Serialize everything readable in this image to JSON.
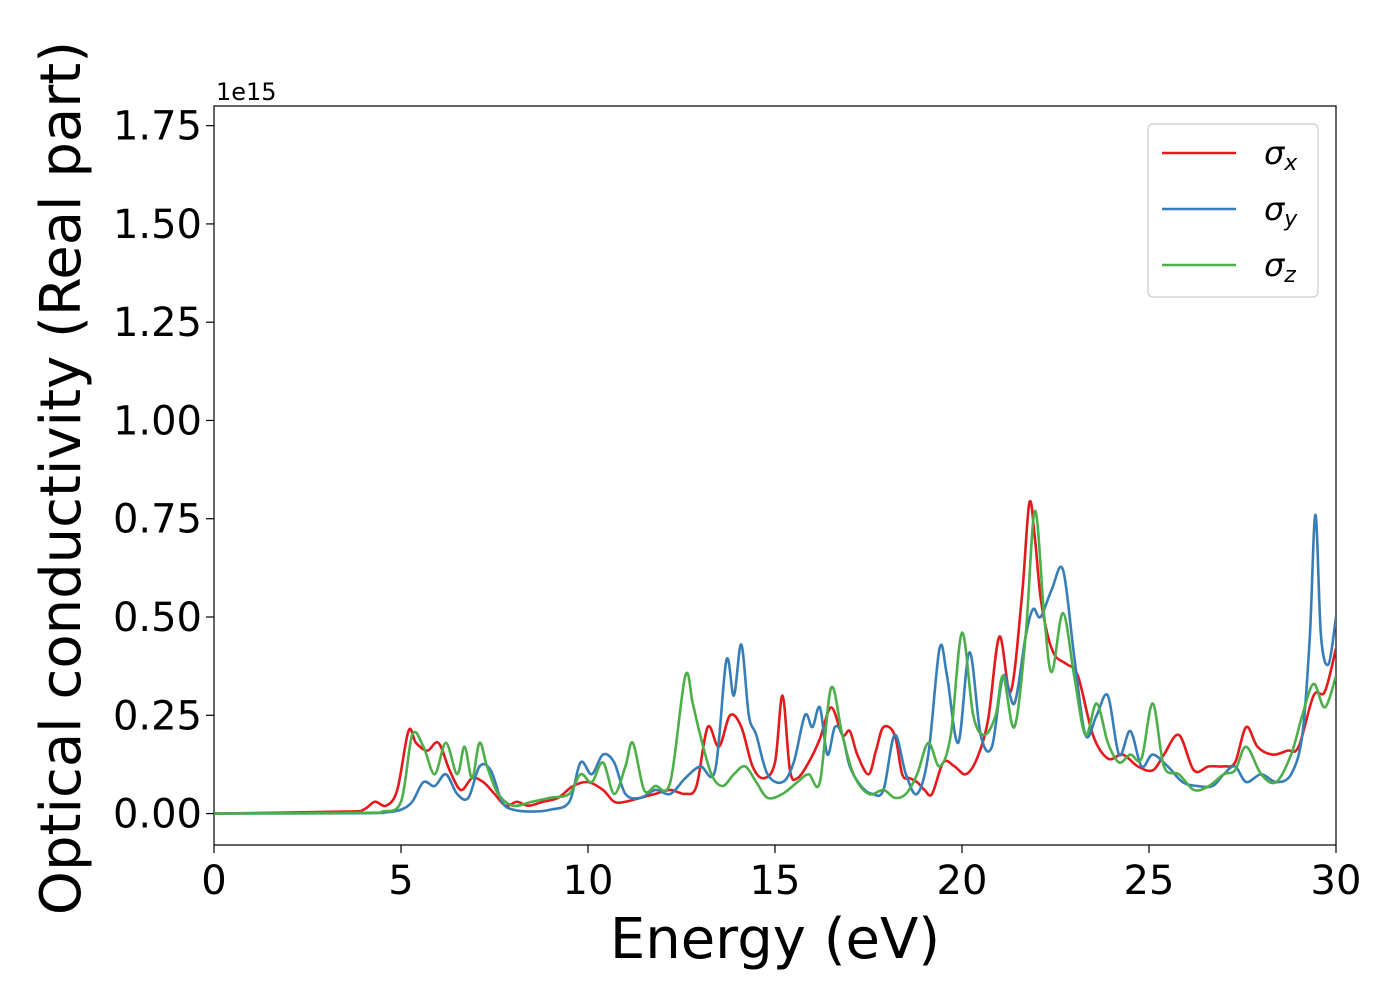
{
  "chart_data": {
    "type": "line",
    "xlabel": "Energy (eV)",
    "ylabel": "Optical conductivity (Real part)",
    "offset_label": "1e15",
    "y_scale_factor": 1000000000000000.0,
    "xlim": [
      0,
      30
    ],
    "ylim": [
      -0.08,
      1.8
    ],
    "xticks": [
      0,
      5,
      10,
      15,
      20,
      25,
      30
    ],
    "xtick_labels": [
      "0",
      "5",
      "10",
      "15",
      "20",
      "25",
      "30"
    ],
    "yticks": [
      0.0,
      0.25,
      0.5,
      0.75,
      1.0,
      1.25,
      1.5,
      1.75
    ],
    "ytick_labels": [
      "0.00",
      "0.25",
      "0.50",
      "0.75",
      "1.00",
      "1.25",
      "1.50",
      "1.75"
    ],
    "grid": false,
    "legend_position": "top-right",
    "series": [
      {
        "name": "σx",
        "base": "σ",
        "sub": "x",
        "color": "#e41a1c",
        "x": [
          0,
          3.5,
          4.0,
          4.3,
          4.6,
          4.9,
          5.2,
          5.4,
          5.7,
          6.0,
          6.3,
          6.6,
          6.9,
          7.2,
          7.5,
          7.8,
          8.1,
          8.4,
          8.8,
          9.2,
          9.6,
          10.0,
          10.4,
          10.7,
          11.0,
          11.4,
          11.8,
          12.2,
          12.6,
          12.9,
          13.2,
          13.5,
          13.8,
          14.1,
          14.4,
          14.7,
          15.0,
          15.2,
          15.4,
          15.6,
          15.9,
          16.2,
          16.5,
          16.8,
          17.0,
          17.2,
          17.5,
          17.7,
          17.9,
          18.2,
          18.4,
          18.6,
          18.8,
          19.0,
          19.2,
          19.5,
          19.8,
          20.1,
          20.4,
          20.7,
          21.0,
          21.3,
          21.6,
          21.8,
          21.95,
          22.1,
          22.3,
          22.5,
          22.8,
          23.1,
          23.5,
          23.9,
          24.3,
          24.7,
          25.1,
          25.4,
          25.8,
          26.2,
          26.6,
          27.0,
          27.3,
          27.6,
          27.9,
          28.3,
          28.7,
          29.0,
          29.4,
          29.7,
          30.0
        ],
        "y": [
          0,
          0.005,
          0.01,
          0.03,
          0.02,
          0.06,
          0.21,
          0.18,
          0.16,
          0.18,
          0.11,
          0.06,
          0.09,
          0.08,
          0.05,
          0.02,
          0.03,
          0.02,
          0.03,
          0.04,
          0.07,
          0.08,
          0.06,
          0.03,
          0.03,
          0.04,
          0.05,
          0.06,
          0.05,
          0.07,
          0.22,
          0.17,
          0.25,
          0.22,
          0.12,
          0.09,
          0.13,
          0.3,
          0.11,
          0.09,
          0.13,
          0.19,
          0.27,
          0.2,
          0.21,
          0.15,
          0.1,
          0.16,
          0.22,
          0.2,
          0.1,
          0.09,
          0.08,
          0.06,
          0.05,
          0.13,
          0.12,
          0.1,
          0.14,
          0.24,
          0.45,
          0.31,
          0.55,
          0.79,
          0.7,
          0.55,
          0.45,
          0.4,
          0.38,
          0.35,
          0.2,
          0.14,
          0.15,
          0.12,
          0.11,
          0.15,
          0.2,
          0.11,
          0.12,
          0.12,
          0.13,
          0.22,
          0.17,
          0.15,
          0.16,
          0.17,
          0.3,
          0.31,
          0.42
        ]
      },
      {
        "name": "σy",
        "base": "σ",
        "sub": "y",
        "color": "#377eb8",
        "x": [
          0,
          4.0,
          4.6,
          5.0,
          5.3,
          5.6,
          5.9,
          6.2,
          6.5,
          6.8,
          7.1,
          7.4,
          7.7,
          8.0,
          8.5,
          9.0,
          9.5,
          9.8,
          10.1,
          10.4,
          10.7,
          11.0,
          11.4,
          11.8,
          12.2,
          12.6,
          13.0,
          13.4,
          13.7,
          13.9,
          14.1,
          14.3,
          14.5,
          14.8,
          15.2,
          15.5,
          15.8,
          16.0,
          16.2,
          16.4,
          16.6,
          16.8,
          17.0,
          17.3,
          17.6,
          17.9,
          18.2,
          18.5,
          18.8,
          19.1,
          19.4,
          19.6,
          19.9,
          20.2,
          20.5,
          20.8,
          21.1,
          21.4,
          21.7,
          21.9,
          22.1,
          22.4,
          22.7,
          23.0,
          23.3,
          23.6,
          23.9,
          24.2,
          24.5,
          24.8,
          25.1,
          25.5,
          25.9,
          26.3,
          26.7,
          27.0,
          27.3,
          27.6,
          28.0,
          28.4,
          28.8,
          29.1,
          29.3,
          29.45,
          29.6,
          29.8,
          30.0
        ],
        "y": [
          0,
          0.001,
          0.003,
          0.01,
          0.03,
          0.08,
          0.07,
          0.1,
          0.05,
          0.04,
          0.12,
          0.11,
          0.03,
          0.01,
          0.005,
          0.01,
          0.03,
          0.13,
          0.1,
          0.15,
          0.13,
          0.05,
          0.04,
          0.06,
          0.05,
          0.09,
          0.12,
          0.11,
          0.39,
          0.3,
          0.43,
          0.25,
          0.2,
          0.1,
          0.08,
          0.13,
          0.25,
          0.22,
          0.27,
          0.15,
          0.22,
          0.2,
          0.12,
          0.07,
          0.05,
          0.06,
          0.2,
          0.1,
          0.05,
          0.15,
          0.42,
          0.35,
          0.18,
          0.41,
          0.2,
          0.17,
          0.35,
          0.28,
          0.45,
          0.52,
          0.5,
          0.57,
          0.62,
          0.4,
          0.2,
          0.25,
          0.3,
          0.15,
          0.21,
          0.12,
          0.15,
          0.12,
          0.08,
          0.07,
          0.07,
          0.1,
          0.12,
          0.08,
          0.1,
          0.08,
          0.1,
          0.2,
          0.45,
          0.76,
          0.45,
          0.38,
          0.5
        ]
      },
      {
        "name": "σz",
        "base": "σ",
        "sub": "z",
        "color": "#4daf4a",
        "x": [
          0,
          4.0,
          4.5,
          5.0,
          5.3,
          5.6,
          5.9,
          6.2,
          6.5,
          6.7,
          6.9,
          7.1,
          7.3,
          7.6,
          8.0,
          8.5,
          9.0,
          9.5,
          9.8,
          10.1,
          10.4,
          10.7,
          11.0,
          11.2,
          11.5,
          11.8,
          12.2,
          12.6,
          12.8,
          13.0,
          13.3,
          13.6,
          13.9,
          14.2,
          14.5,
          14.8,
          15.2,
          15.6,
          15.9,
          16.2,
          16.5,
          16.8,
          17.1,
          17.5,
          17.9,
          18.2,
          18.5,
          18.8,
          19.1,
          19.4,
          19.7,
          20.0,
          20.3,
          20.6,
          20.9,
          21.1,
          21.4,
          21.7,
          21.95,
          22.2,
          22.4,
          22.7,
          23.0,
          23.3,
          23.6,
          23.9,
          24.2,
          24.5,
          24.8,
          25.1,
          25.4,
          25.8,
          26.2,
          26.6,
          27.0,
          27.3,
          27.6,
          28.0,
          28.4,
          28.8,
          29.1,
          29.4,
          29.7,
          30.0
        ],
        "y": [
          0,
          0.002,
          0.005,
          0.03,
          0.2,
          0.17,
          0.1,
          0.18,
          0.1,
          0.17,
          0.09,
          0.18,
          0.12,
          0.05,
          0.02,
          0.03,
          0.04,
          0.05,
          0.1,
          0.08,
          0.13,
          0.05,
          0.12,
          0.18,
          0.06,
          0.07,
          0.08,
          0.35,
          0.28,
          0.2,
          0.1,
          0.07,
          0.1,
          0.12,
          0.08,
          0.04,
          0.05,
          0.08,
          0.1,
          0.08,
          0.32,
          0.2,
          0.1,
          0.05,
          0.06,
          0.04,
          0.05,
          0.1,
          0.18,
          0.12,
          0.2,
          0.46,
          0.25,
          0.2,
          0.25,
          0.35,
          0.22,
          0.45,
          0.77,
          0.5,
          0.36,
          0.51,
          0.35,
          0.2,
          0.28,
          0.18,
          0.13,
          0.15,
          0.14,
          0.28,
          0.12,
          0.1,
          0.06,
          0.07,
          0.1,
          0.11,
          0.17,
          0.1,
          0.08,
          0.15,
          0.25,
          0.33,
          0.27,
          0.35
        ]
      }
    ]
  }
}
